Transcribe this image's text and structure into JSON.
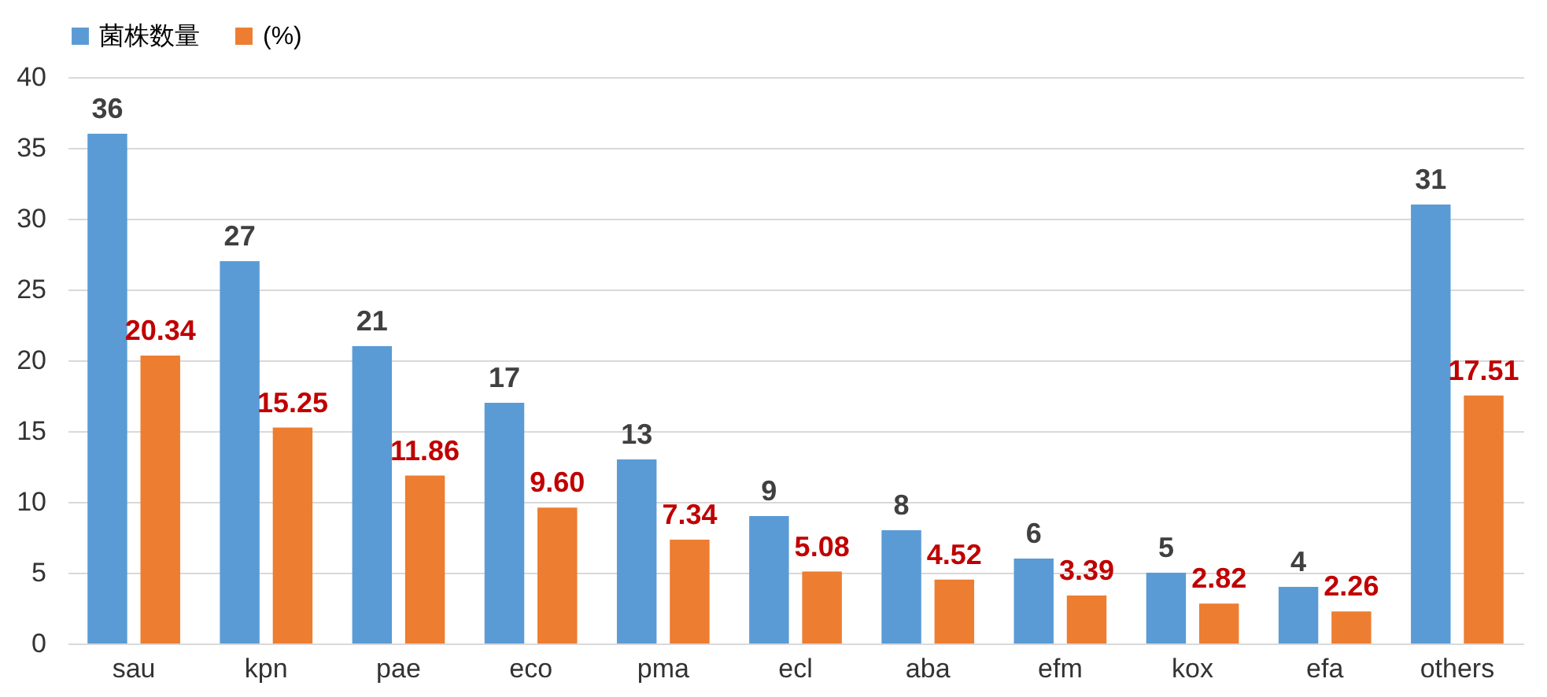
{
  "chart_data": {
    "type": "bar",
    "categories": [
      "sau",
      "kpn",
      "pae",
      "eco",
      "pma",
      "ecl",
      "aba",
      "efm",
      "kox",
      "efa",
      "others"
    ],
    "series": [
      {
        "name": "菌株数量",
        "color": "#5b9bd5",
        "values": [
          36,
          27,
          21,
          17,
          13,
          9,
          8,
          6,
          5,
          4,
          31
        ],
        "value_labels": [
          "36",
          "27",
          "21",
          "17",
          "13",
          "9",
          "8",
          "6",
          "5",
          "4",
          "31"
        ]
      },
      {
        "name": "(%)",
        "color": "#ed7d31",
        "values": [
          20.34,
          15.25,
          11.86,
          9.6,
          7.34,
          5.08,
          4.52,
          3.39,
          2.82,
          2.26,
          17.51
        ],
        "value_labels": [
          "20.34",
          "15.25",
          "11.86",
          "9.60",
          "7.34",
          "5.08",
          "4.52",
          "3.39",
          "2.82",
          "2.26",
          "17.51"
        ]
      }
    ],
    "ylim": [
      0,
      40
    ],
    "yticks": [
      0,
      5,
      10,
      15,
      20,
      25,
      30,
      35,
      40
    ],
    "grid": "y",
    "legend": "top"
  }
}
